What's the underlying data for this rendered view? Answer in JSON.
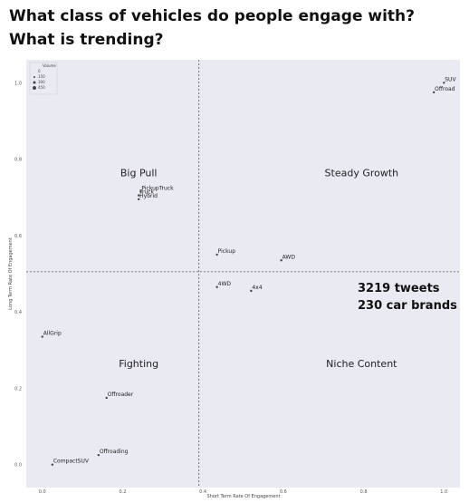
{
  "page": {
    "title": "What class of vehicles do people engage with? What is trending?",
    "stats": {
      "tweets": "3219 tweets",
      "brands": "230 car brands"
    }
  },
  "chart_data": {
    "type": "scatter",
    "xlabel": "Short Term Rate Of Engagement",
    "ylabel": "Long Term Rate Of Engagement",
    "xlim": [
      -0.04,
      1.04
    ],
    "ylim": [
      -0.06,
      1.06
    ],
    "x_ticks": [
      0.0,
      0.2,
      0.4,
      0.6,
      0.8,
      1.0
    ],
    "x_tick_labels": [
      "0.0",
      "0.2",
      "0.4",
      "0.6",
      "0.8",
      "1.0"
    ],
    "y_ticks": [
      0.0,
      0.2,
      0.4,
      0.6,
      0.8,
      1.0
    ],
    "y_tick_labels": [
      "0.0",
      "0.2",
      "0.4",
      "0.6",
      "0.8",
      "1.0"
    ],
    "grid": false,
    "background": "#eaeaf2",
    "point_color": "#444444",
    "dividers": {
      "x": 0.39,
      "y": 0.505,
      "style": "dashed"
    },
    "legend": {
      "position": "top-left",
      "title": "Volume",
      "entries": [
        {
          "label": "0",
          "size": 0
        },
        {
          "label": "150",
          "size": 150
        },
        {
          "label": "300",
          "size": 300
        },
        {
          "label": "450",
          "size": 450
        }
      ]
    },
    "quadrants": [
      {
        "label": "Big Pull",
        "x": 0.24,
        "y": 0.765
      },
      {
        "label": "Steady Growth",
        "x": 0.795,
        "y": 0.765
      },
      {
        "label": "Fighting",
        "x": 0.24,
        "y": 0.265
      },
      {
        "label": "Niche Content",
        "x": 0.795,
        "y": 0.265
      }
    ],
    "points": [
      {
        "label": "SUV",
        "x": 1.0,
        "y": 1.0
      },
      {
        "label": "Offroad",
        "x": 0.975,
        "y": 0.975
      },
      {
        "label": "PickupTruck",
        "x": 0.245,
        "y": 0.715
      },
      {
        "label": "Truck",
        "x": 0.24,
        "y": 0.705
      },
      {
        "label": "Hybrid",
        "x": 0.24,
        "y": 0.695
      },
      {
        "label": "Pickup",
        "x": 0.435,
        "y": 0.55
      },
      {
        "label": "AWD",
        "x": 0.595,
        "y": 0.535
      },
      {
        "label": "4WD",
        "x": 0.435,
        "y": 0.465
      },
      {
        "label": "4x4",
        "x": 0.52,
        "y": 0.455
      },
      {
        "label": "AllGrip",
        "x": 0.0,
        "y": 0.335
      },
      {
        "label": "Offroader",
        "x": 0.16,
        "y": 0.175
      },
      {
        "label": "Offroading",
        "x": 0.14,
        "y": 0.025
      },
      {
        "label": "CompactSUV",
        "x": 0.025,
        "y": 0.0
      }
    ]
  }
}
